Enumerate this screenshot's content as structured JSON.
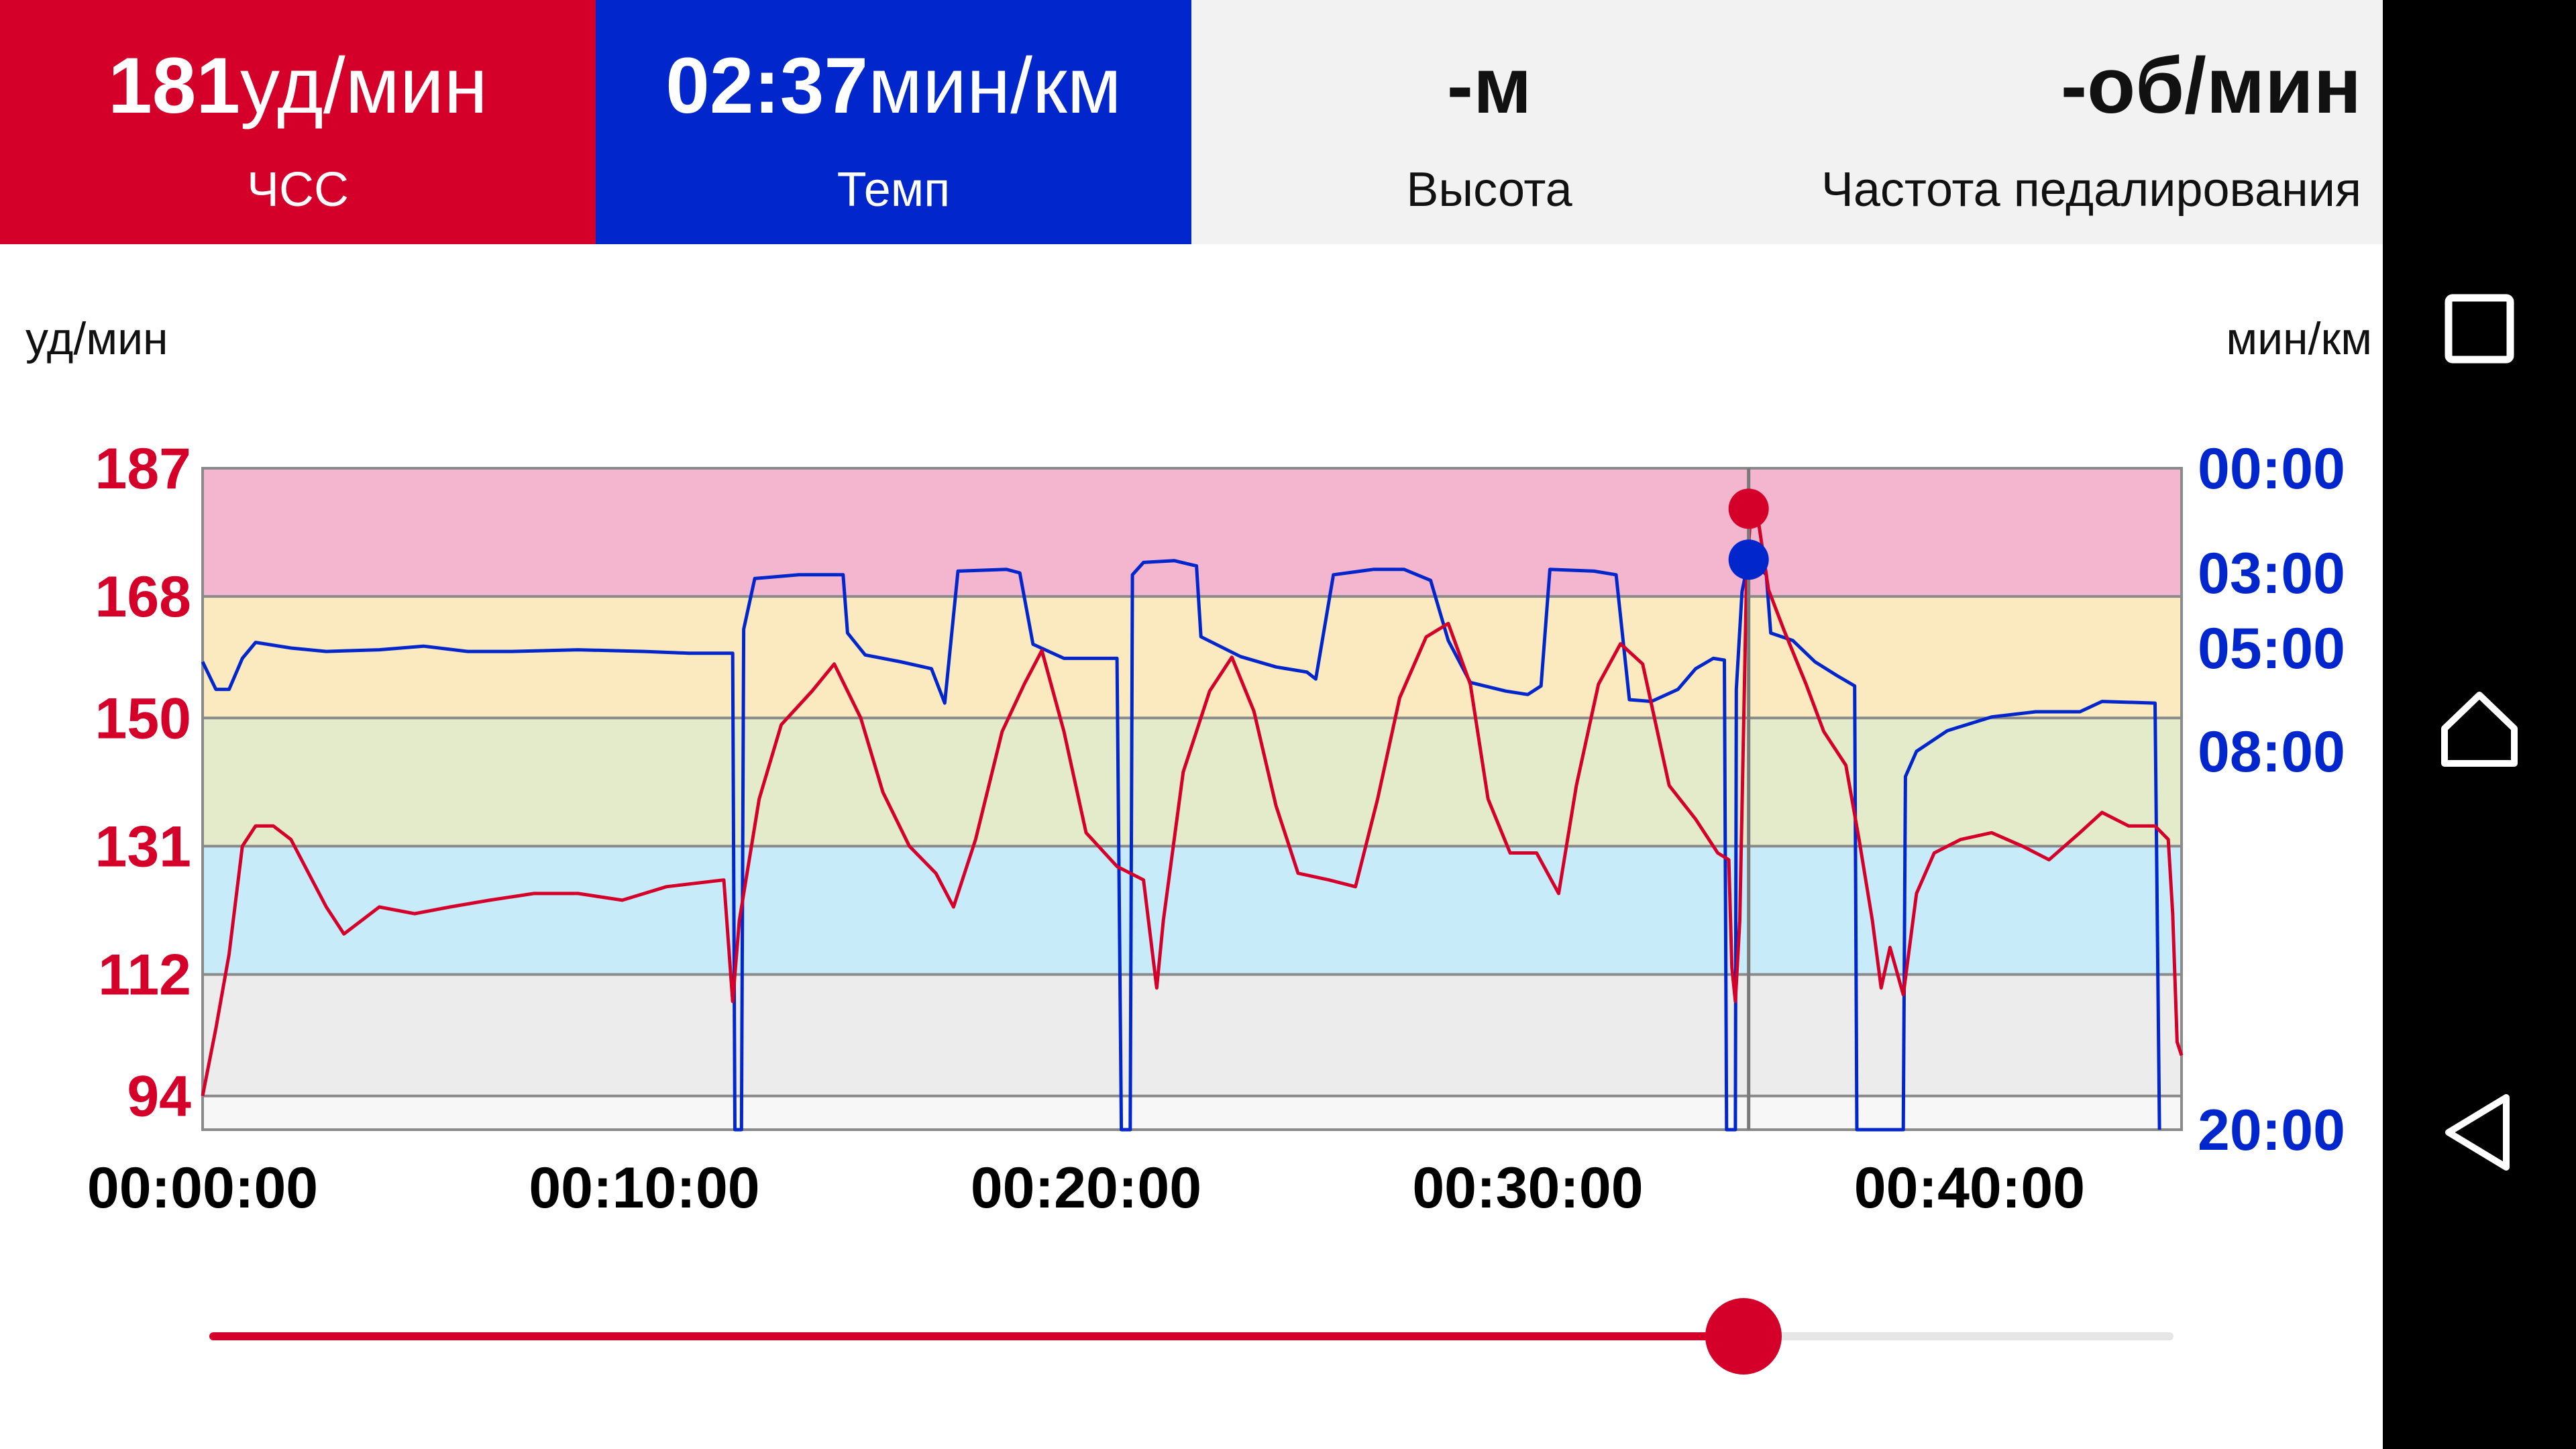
{
  "header": {
    "heart_rate": {
      "value": "181",
      "unit": "уд/мин",
      "label": "ЧСС",
      "color": "#d4002a"
    },
    "pace": {
      "value": "02:37",
      "unit": "мин/км",
      "label": "Темп",
      "color": "#0026cc"
    },
    "altitude": {
      "value": "-",
      "unit": "м",
      "label": "Высота"
    },
    "cadence": {
      "value": "-",
      "unit": "об/мин",
      "label": "Частота педалирования"
    }
  },
  "chart_data": {
    "type": "line",
    "left_axis_label": "уд/мин",
    "right_axis_label": "мин/км",
    "left_ticks": [
      "187",
      "168",
      "150",
      "131",
      "112",
      "94"
    ],
    "right_ticks": [
      "00:00",
      "03:00",
      "05:00",
      "08:00",
      "20:00"
    ],
    "x_ticks": [
      "00:00:00",
      "00:10:00",
      "00:20:00",
      "00:30:00",
      "00:40:00"
    ],
    "x_range_min": [
      0,
      44.8
    ],
    "hr_range": [
      89,
      187
    ],
    "zones": [
      {
        "from": 89,
        "to": 94,
        "color": "#f7f7f7"
      },
      {
        "from": 94,
        "to": 112,
        "color": "#ececec"
      },
      {
        "from": 112,
        "to": 131,
        "color": "#c8ebf9"
      },
      {
        "from": 131,
        "to": 150,
        "color": "#e4ebcb"
      },
      {
        "from": 150,
        "to": 168,
        "color": "#fbe9bf"
      },
      {
        "from": 168,
        "to": 187,
        "color": "#f4b6cf"
      }
    ],
    "cursor_min": 35.0,
    "cursor_hr": 181,
    "cursor_pace_min": 2.62,
    "series": [
      {
        "color": "#d4002a",
        "axis": "left",
        "points": [
          [
            0,
            94
          ],
          [
            0.3,
            104
          ],
          [
            0.6,
            115
          ],
          [
            0.9,
            131
          ],
          [
            1.2,
            134
          ],
          [
            1.6,
            134
          ],
          [
            2.0,
            132
          ],
          [
            2.4,
            127
          ],
          [
            2.8,
            122
          ],
          [
            3.2,
            118
          ],
          [
            3.6,
            120
          ],
          [
            4.0,
            122
          ],
          [
            4.8,
            121
          ],
          [
            5.6,
            122
          ],
          [
            6.5,
            123
          ],
          [
            7.5,
            124
          ],
          [
            8.5,
            124
          ],
          [
            9.5,
            123
          ],
          [
            10.5,
            125
          ],
          [
            11.8,
            126
          ],
          [
            12.0,
            108
          ],
          [
            12.15,
            120
          ],
          [
            12.6,
            138
          ],
          [
            13.1,
            149
          ],
          [
            13.8,
            154
          ],
          [
            14.3,
            158
          ],
          [
            14.9,
            150
          ],
          [
            15.4,
            139
          ],
          [
            16.0,
            131
          ],
          [
            16.6,
            127
          ],
          [
            17.0,
            122
          ],
          [
            17.5,
            132
          ],
          [
            18.1,
            148
          ],
          [
            18.6,
            155
          ],
          [
            19.0,
            160
          ],
          [
            19.5,
            148
          ],
          [
            20.0,
            133
          ],
          [
            20.7,
            128
          ],
          [
            21.3,
            126
          ],
          [
            21.6,
            110
          ],
          [
            21.75,
            120
          ],
          [
            22.2,
            142
          ],
          [
            22.8,
            154
          ],
          [
            23.3,
            159
          ],
          [
            23.8,
            151
          ],
          [
            24.3,
            137
          ],
          [
            24.8,
            127
          ],
          [
            25.5,
            126
          ],
          [
            26.1,
            125
          ],
          [
            26.6,
            138
          ],
          [
            27.1,
            153
          ],
          [
            27.7,
            162
          ],
          [
            28.2,
            164
          ],
          [
            28.7,
            155
          ],
          [
            29.1,
            138
          ],
          [
            29.6,
            130
          ],
          [
            30.2,
            130
          ],
          [
            30.7,
            124
          ],
          [
            31.1,
            140
          ],
          [
            31.6,
            155
          ],
          [
            32.1,
            161
          ],
          [
            32.6,
            158
          ],
          [
            33.2,
            140
          ],
          [
            33.8,
            135
          ],
          [
            34.3,
            130
          ],
          [
            34.55,
            129
          ],
          [
            34.62,
            113
          ],
          [
            34.7,
            108
          ],
          [
            34.8,
            120
          ],
          [
            34.95,
            170
          ],
          [
            35.05,
            181
          ],
          [
            35.2,
            180
          ],
          [
            35.45,
            169
          ],
          [
            35.8,
            163
          ],
          [
            36.3,
            155
          ],
          [
            36.7,
            148
          ],
          [
            37.2,
            143
          ],
          [
            37.5,
            132
          ],
          [
            37.8,
            120
          ],
          [
            38.0,
            110
          ],
          [
            38.2,
            116
          ],
          [
            38.5,
            109
          ],
          [
            38.8,
            124
          ],
          [
            39.2,
            130
          ],
          [
            39.8,
            132
          ],
          [
            40.5,
            133
          ],
          [
            41.2,
            131
          ],
          [
            41.8,
            129
          ],
          [
            42.5,
            133
          ],
          [
            43.0,
            136
          ],
          [
            43.6,
            134
          ],
          [
            44.2,
            134
          ],
          [
            44.5,
            132
          ],
          [
            44.6,
            121
          ],
          [
            44.7,
            102
          ],
          [
            44.8,
            100
          ]
        ]
      },
      {
        "color": "#0026cc",
        "axis": "right",
        "points": [
          [
            0,
            5.4
          ],
          [
            0.3,
            6.2
          ],
          [
            0.6,
            6.2
          ],
          [
            0.9,
            5.3
          ],
          [
            1.2,
            4.85
          ],
          [
            2.0,
            5.0
          ],
          [
            2.8,
            5.1
          ],
          [
            4.0,
            5.05
          ],
          [
            5.0,
            4.95
          ],
          [
            6.0,
            5.1
          ],
          [
            7.0,
            5.1
          ],
          [
            8.5,
            5.05
          ],
          [
            10.0,
            5.1
          ],
          [
            11.0,
            5.15
          ],
          [
            12.0,
            5.15
          ],
          [
            12.05,
            20
          ],
          [
            12.2,
            20
          ],
          [
            12.25,
            4.5
          ],
          [
            12.5,
            3.15
          ],
          [
            13.5,
            3.05
          ],
          [
            14.5,
            3.05
          ],
          [
            14.6,
            4.6
          ],
          [
            15.0,
            5.2
          ],
          [
            15.8,
            5.4
          ],
          [
            16.5,
            5.6
          ],
          [
            16.8,
            6.6
          ],
          [
            17.1,
            2.95
          ],
          [
            18.2,
            2.9
          ],
          [
            18.5,
            3.0
          ],
          [
            18.8,
            4.9
          ],
          [
            19.5,
            5.3
          ],
          [
            20.0,
            5.3
          ],
          [
            20.7,
            5.3
          ],
          [
            20.8,
            20
          ],
          [
            21.0,
            20
          ],
          [
            21.05,
            3.05
          ],
          [
            21.3,
            2.7
          ],
          [
            22.0,
            2.65
          ],
          [
            22.5,
            2.8
          ],
          [
            22.6,
            4.7
          ],
          [
            23.5,
            5.25
          ],
          [
            24.3,
            5.55
          ],
          [
            25.0,
            5.7
          ],
          [
            25.2,
            5.9
          ],
          [
            25.6,
            3.05
          ],
          [
            26.5,
            2.9
          ],
          [
            27.2,
            2.9
          ],
          [
            27.8,
            3.2
          ],
          [
            28.2,
            4.8
          ],
          [
            28.7,
            6.0
          ],
          [
            29.5,
            6.25
          ],
          [
            30.0,
            6.35
          ],
          [
            30.3,
            6.1
          ],
          [
            30.5,
            2.9
          ],
          [
            31.5,
            2.95
          ],
          [
            32.0,
            3.05
          ],
          [
            32.3,
            6.5
          ],
          [
            32.8,
            6.55
          ],
          [
            33.4,
            6.2
          ],
          [
            33.8,
            5.6
          ],
          [
            34.2,
            5.3
          ],
          [
            34.45,
            5.35
          ],
          [
            34.5,
            20
          ],
          [
            34.7,
            20
          ],
          [
            34.72,
            6.2
          ],
          [
            34.85,
            3.5
          ],
          [
            35.0,
            2.6
          ],
          [
            35.2,
            2.8
          ],
          [
            35.4,
            3.05
          ],
          [
            35.5,
            4.6
          ],
          [
            36.0,
            4.8
          ],
          [
            36.5,
            5.4
          ],
          [
            37.0,
            5.8
          ],
          [
            37.4,
            6.1
          ],
          [
            37.45,
            20
          ],
          [
            38.4,
            20
          ],
          [
            38.5,
            20
          ],
          [
            38.55,
            8.8
          ],
          [
            38.8,
            8.0
          ],
          [
            39.5,
            7.4
          ],
          [
            40.5,
            7.0
          ],
          [
            41.5,
            6.85
          ],
          [
            42.5,
            6.85
          ],
          [
            43.0,
            6.55
          ],
          [
            44.2,
            6.6
          ],
          [
            44.3,
            20
          ]
        ]
      }
    ]
  },
  "slider": {
    "value_fraction": 0.781
  }
}
